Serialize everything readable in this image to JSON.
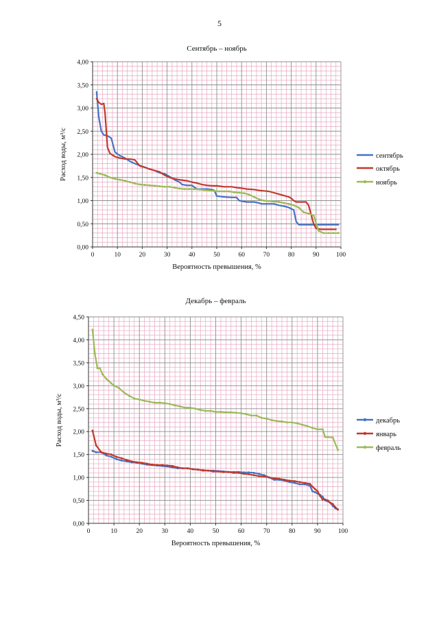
{
  "page": {
    "number": "5"
  },
  "chart_data": [
    {
      "type": "line",
      "title": "Сентябрь – ноябрь",
      "xlabel": "Вероятность превышения, %",
      "ylabel": "Расход воды, м³/с",
      "xlim": [
        0,
        100
      ],
      "ylim": [
        0,
        4
      ],
      "xticks": [
        0,
        10,
        20,
        30,
        40,
        50,
        60,
        70,
        80,
        90,
        100
      ],
      "yticks": [
        "0,00",
        "0,50",
        "1,00",
        "1,50",
        "2,00",
        "2,50",
        "3,00",
        "3,50",
        "4,00"
      ],
      "grid": true,
      "legend": "right",
      "series": [
        {
          "name": "сентябрь",
          "color": "#4472c4",
          "markers": false,
          "x": [
            1.6,
            2.5,
            3.5,
            4.5,
            6,
            7.5,
            9,
            11,
            13,
            15,
            17,
            19,
            21,
            23,
            25,
            27,
            29,
            31,
            33,
            35,
            36,
            38,
            40,
            42,
            44,
            46,
            48,
            49,
            50,
            53,
            56,
            58,
            59,
            62,
            65,
            67,
            68,
            71,
            73,
            75,
            77,
            79,
            81,
            82,
            83,
            85,
            87,
            89,
            91,
            93,
            95,
            97,
            99
          ],
          "y": [
            3.35,
            2.8,
            2.5,
            2.42,
            2.4,
            2.35,
            2.05,
            1.97,
            1.92,
            1.85,
            1.8,
            1.76,
            1.72,
            1.68,
            1.65,
            1.6,
            1.58,
            1.52,
            1.45,
            1.4,
            1.35,
            1.33,
            1.33,
            1.25,
            1.25,
            1.25,
            1.24,
            1.22,
            1.1,
            1.08,
            1.07,
            1.07,
            1.0,
            0.97,
            0.97,
            0.95,
            0.93,
            0.93,
            0.93,
            0.9,
            0.88,
            0.85,
            0.8,
            0.55,
            0.48,
            0.48,
            0.48,
            0.48,
            0.48,
            0.48,
            0.48,
            0.48,
            0.48
          ]
        },
        {
          "name": "октябрь",
          "color": "#c0392b",
          "markers": false,
          "x": [
            1.6,
            2.5,
            3.5,
            4.5,
            5,
            6,
            7,
            9,
            11,
            13,
            15,
            17,
            19,
            21,
            23,
            25,
            27,
            29,
            31,
            33,
            35,
            38,
            40,
            42,
            44,
            46,
            48,
            50,
            53,
            56,
            58,
            60,
            62,
            65,
            67,
            69,
            71,
            73,
            75,
            77,
            79,
            80,
            81,
            82,
            83,
            85,
            86,
            87,
            88,
            89,
            90,
            92,
            94,
            96,
            98
          ],
          "y": [
            3.2,
            3.12,
            3.08,
            3.1,
            2.9,
            2.15,
            2.02,
            1.95,
            1.92,
            1.9,
            1.9,
            1.88,
            1.75,
            1.72,
            1.68,
            1.65,
            1.62,
            1.55,
            1.5,
            1.47,
            1.45,
            1.43,
            1.4,
            1.38,
            1.35,
            1.33,
            1.32,
            1.32,
            1.3,
            1.3,
            1.28,
            1.27,
            1.25,
            1.24,
            1.22,
            1.21,
            1.2,
            1.17,
            1.14,
            1.11,
            1.08,
            1.05,
            1.0,
            0.97,
            0.97,
            0.97,
            0.97,
            0.9,
            0.7,
            0.5,
            0.4,
            0.38,
            0.38,
            0.38,
            0.38
          ]
        },
        {
          "name": "ноябрь",
          "color": "#9bbb59",
          "markers": true,
          "x": [
            1.6,
            3,
            5,
            7,
            9,
            11,
            13,
            15,
            17,
            19,
            21,
            23,
            25,
            27,
            29,
            31,
            33,
            35,
            37,
            39,
            41,
            43,
            45,
            47,
            49,
            51,
            53,
            55,
            57,
            59,
            61,
            63,
            65,
            67,
            69,
            71,
            73,
            75,
            77,
            79,
            81,
            83,
            85,
            87,
            89,
            91,
            93,
            95,
            97,
            99
          ],
          "y": [
            1.6,
            1.58,
            1.55,
            1.5,
            1.47,
            1.45,
            1.43,
            1.4,
            1.37,
            1.35,
            1.34,
            1.33,
            1.32,
            1.31,
            1.3,
            1.3,
            1.28,
            1.26,
            1.25,
            1.25,
            1.25,
            1.24,
            1.23,
            1.22,
            1.21,
            1.2,
            1.2,
            1.2,
            1.18,
            1.17,
            1.16,
            1.13,
            1.08,
            1.03,
            1.0,
            0.99,
            0.98,
            0.97,
            0.95,
            0.93,
            0.9,
            0.85,
            0.75,
            0.72,
            0.68,
            0.35,
            0.3,
            0.3,
            0.3,
            0.3
          ]
        }
      ]
    },
    {
      "type": "line",
      "title": "Декабрь – февраль",
      "xlabel": "Вероятность превышения, %",
      "ylabel": "Расход воды, м³/с",
      "xlim": [
        0,
        100
      ],
      "ylim": [
        0,
        4.5
      ],
      "xticks": [
        0,
        10,
        20,
        30,
        40,
        50,
        60,
        70,
        80,
        90,
        100
      ],
      "yticks": [
        "0,00",
        "0,50",
        "1,00",
        "1,50",
        "2,00",
        "2,50",
        "3,00",
        "3,50",
        "4,00",
        "4,50"
      ],
      "grid": true,
      "legend": "right",
      "series": [
        {
          "name": "декабрь",
          "color": "#4472c4",
          "markers": true,
          "x": [
            1.6,
            3,
            5,
            7,
            9,
            11,
            13,
            15,
            17,
            19,
            21,
            23,
            25,
            27,
            29,
            31,
            33,
            35,
            37,
            39,
            41,
            43,
            45,
            47,
            49,
            51,
            53,
            55,
            57,
            59,
            61,
            63,
            65,
            67,
            69,
            71,
            73,
            75,
            77,
            79,
            81,
            83,
            85,
            87,
            88,
            89,
            90,
            91,
            92,
            93,
            94,
            95,
            96,
            97,
            98
          ],
          "y": [
            1.58,
            1.55,
            1.55,
            1.48,
            1.45,
            1.4,
            1.37,
            1.35,
            1.33,
            1.32,
            1.3,
            1.28,
            1.27,
            1.26,
            1.25,
            1.24,
            1.22,
            1.2,
            1.2,
            1.2,
            1.18,
            1.17,
            1.16,
            1.15,
            1.15,
            1.14,
            1.13,
            1.12,
            1.12,
            1.12,
            1.11,
            1.11,
            1.1,
            1.08,
            1.05,
            1.0,
            0.95,
            0.95,
            0.93,
            0.9,
            0.88,
            0.85,
            0.85,
            0.82,
            0.7,
            0.68,
            0.65,
            0.62,
            0.58,
            0.5,
            0.48,
            0.45,
            0.38,
            0.33,
            0.3
          ]
        },
        {
          "name": "январь",
          "color": "#c0392b",
          "markers": true,
          "x": [
            1.6,
            3,
            5,
            7,
            9,
            11,
            13,
            15,
            17,
            19,
            21,
            23,
            25,
            27,
            29,
            31,
            33,
            35,
            37,
            39,
            41,
            43,
            45,
            47,
            49,
            51,
            53,
            55,
            57,
            59,
            61,
            63,
            65,
            67,
            69,
            71,
            73,
            75,
            77,
            79,
            81,
            83,
            85,
            87,
            88,
            89,
            90,
            91,
            92,
            93,
            94,
            95,
            96,
            97,
            98
          ],
          "y": [
            2.02,
            1.7,
            1.55,
            1.52,
            1.5,
            1.45,
            1.42,
            1.38,
            1.35,
            1.33,
            1.32,
            1.3,
            1.28,
            1.27,
            1.27,
            1.26,
            1.25,
            1.22,
            1.2,
            1.2,
            1.18,
            1.17,
            1.15,
            1.15,
            1.13,
            1.13,
            1.12,
            1.12,
            1.1,
            1.1,
            1.08,
            1.07,
            1.05,
            1.03,
            1.02,
            1.0,
            0.98,
            0.97,
            0.95,
            0.93,
            0.92,
            0.9,
            0.88,
            0.86,
            0.8,
            0.75,
            0.7,
            0.6,
            0.52,
            0.52,
            0.5,
            0.45,
            0.42,
            0.35,
            0.3
          ]
        },
        {
          "name": "февраль",
          "color": "#9bbb59",
          "markers": true,
          "x": [
            1.6,
            2.5,
            3.5,
            4.5,
            5.5,
            7,
            8,
            9,
            10,
            12,
            14,
            16,
            18,
            20,
            22,
            24,
            26,
            28,
            30,
            32,
            34,
            36,
            38,
            40,
            42,
            44,
            46,
            48,
            50,
            52,
            54,
            56,
            58,
            60,
            62,
            64,
            66,
            68,
            70,
            72,
            74,
            76,
            78,
            80,
            82,
            84,
            86,
            88,
            90,
            92,
            93,
            94,
            96,
            98
          ],
          "y": [
            4.22,
            3.7,
            3.38,
            3.38,
            3.25,
            3.15,
            3.1,
            3.05,
            3.0,
            2.95,
            2.85,
            2.78,
            2.72,
            2.7,
            2.67,
            2.65,
            2.63,
            2.63,
            2.62,
            2.6,
            2.57,
            2.55,
            2.52,
            2.52,
            2.5,
            2.47,
            2.45,
            2.45,
            2.43,
            2.43,
            2.42,
            2.42,
            2.41,
            2.4,
            2.38,
            2.35,
            2.35,
            2.3,
            2.28,
            2.25,
            2.23,
            2.22,
            2.2,
            2.2,
            2.18,
            2.15,
            2.12,
            2.08,
            2.05,
            2.05,
            1.88,
            1.88,
            1.87,
            1.6
          ]
        }
      ]
    }
  ]
}
